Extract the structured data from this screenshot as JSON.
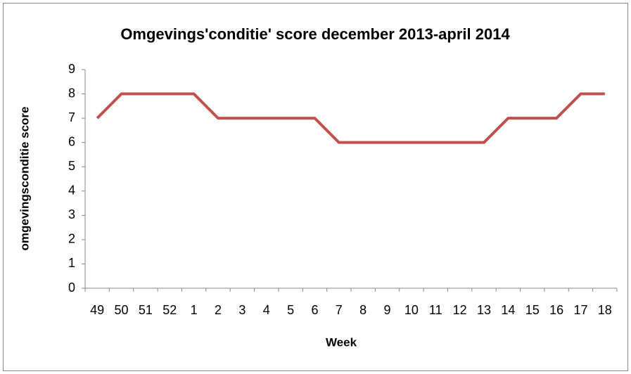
{
  "chart_data": {
    "type": "line",
    "title": "Omgevings'conditie' score december 2013-april 2014",
    "x_label": "Week",
    "y_label": "omgevingsconditie score",
    "categories": [
      "49",
      "50",
      "51",
      "52",
      "1",
      "2",
      "3",
      "4",
      "5",
      "6",
      "7",
      "8",
      "9",
      "10",
      "11",
      "12",
      "13",
      "14",
      "15",
      "16",
      "17",
      "18"
    ],
    "values": [
      7,
      8,
      8,
      8,
      8,
      7,
      7,
      7,
      7,
      7,
      6,
      6,
      6,
      6,
      6,
      6,
      6,
      7,
      7,
      7,
      8,
      8
    ],
    "color": "#c0504d",
    "ylim": [
      0,
      9
    ],
    "yticks": [
      0,
      1,
      2,
      3,
      4,
      5,
      6,
      7,
      8,
      9
    ],
    "grid": false
  }
}
